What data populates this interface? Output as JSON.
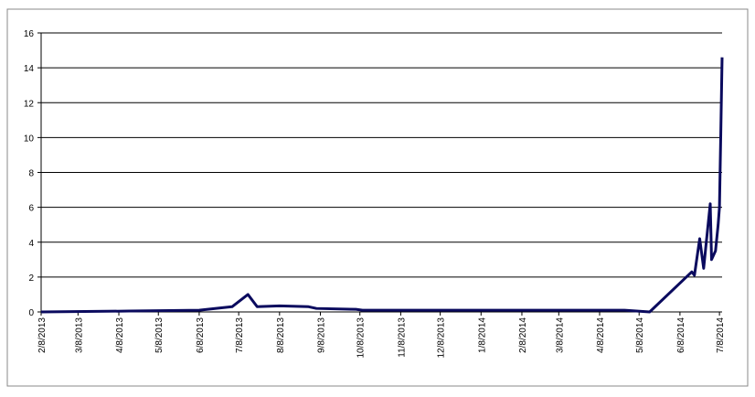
{
  "chart_data": {
    "type": "line",
    "x": [
      "2/8/2013",
      "4/16/2013",
      "6/8/2013",
      "7/3/2013",
      "7/15/2013",
      "7/22/2013",
      "8/8/2013",
      "8/30/2013",
      "9/5/2013",
      "10/5/2013",
      "10/10/2013",
      "4/27/2014",
      "5/16/2014",
      "6/17/2014",
      "6/19/2014",
      "6/23/2014",
      "6/26/2014",
      "6/28/2014",
      "7/1/2014",
      "7/2/2014",
      "7/5/2014",
      "7/7/2014",
      "7/8/2014",
      "7/9/2014",
      "7/10/2014"
    ],
    "series": [
      {
        "color": "#0a0a5e",
        "values": [
          0,
          0.05,
          0.1,
          0.3,
          1.0,
          0.3,
          0.35,
          0.3,
          0.2,
          0.15,
          0.1,
          0.1,
          0,
          2.3,
          2.1,
          4.2,
          2.5,
          4.0,
          6.2,
          3.0,
          3.5,
          5.0,
          6.0,
          10.2,
          14.6
        ]
      }
    ],
    "xlim": [
      "2/8/2013",
      "7/10/2014"
    ],
    "xticks": [
      "2/8/2013",
      "3/8/2013",
      "4/8/2013",
      "5/8/2013",
      "6/8/2013",
      "7/8/2013",
      "8/8/2013",
      "9/8/2013",
      "10/8/2013",
      "11/8/2013",
      "12/8/2013",
      "1/8/2014",
      "2/8/2014",
      "3/8/2014",
      "4/8/2014",
      "5/8/2014",
      "6/8/2014",
      "7/8/2014"
    ],
    "ylim": [
      0,
      16
    ],
    "yticks": [
      0,
      2,
      4,
      6,
      8,
      10,
      12,
      14,
      16
    ],
    "grid": true
  }
}
